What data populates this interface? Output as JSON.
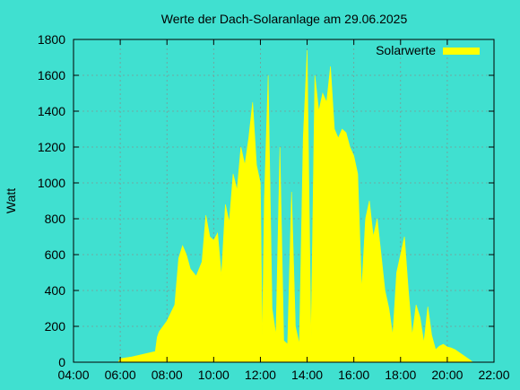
{
  "chart_data": {
    "type": "area",
    "title": "Werte der Dach-Solaranlage am 29.06.2025",
    "xlabel": "",
    "ylabel": "Watt",
    "x_ticks": [
      "04:00",
      "06:00",
      "08:00",
      "10:00",
      "12:00",
      "14:00",
      "16:00",
      "18:00",
      "20:00",
      "22:00"
    ],
    "y_ticks": [
      "0",
      "200",
      "400",
      "600",
      "800",
      "1000",
      "1200",
      "1400",
      "1600",
      "1800"
    ],
    "xlim": [
      "04:00",
      "22:00"
    ],
    "ylim": [
      0,
      1800
    ],
    "grid": true,
    "legend_position": "top-right",
    "colors": {
      "background": "#40E0D0",
      "series": "#FFFF00"
    },
    "series": [
      {
        "name": "Solarwerte",
        "x": [
          "05:55",
          "06:00",
          "06:30",
          "07:00",
          "07:30",
          "07:35",
          "07:40",
          "08:00",
          "08:20",
          "08:30",
          "08:40",
          "08:50",
          "09:00",
          "09:15",
          "09:30",
          "09:40",
          "09:50",
          "10:00",
          "10:10",
          "10:20",
          "10:30",
          "10:40",
          "10:50",
          "11:00",
          "11:10",
          "11:20",
          "11:30",
          "11:40",
          "11:50",
          "12:00",
          "12:05",
          "12:10",
          "12:20",
          "12:30",
          "12:40",
          "12:50",
          "13:00",
          "13:10",
          "13:20",
          "13:30",
          "13:40",
          "13:50",
          "14:00",
          "14:10",
          "14:20",
          "14:30",
          "14:40",
          "14:50",
          "15:00",
          "15:10",
          "15:20",
          "15:30",
          "15:40",
          "15:50",
          "16:00",
          "16:10",
          "16:20",
          "16:30",
          "16:40",
          "16:50",
          "17:00",
          "17:10",
          "17:20",
          "17:30",
          "17:40",
          "17:50",
          "18:00",
          "18:10",
          "18:20",
          "18:30",
          "18:40",
          "18:50",
          "19:00",
          "19:10",
          "19:20",
          "19:30",
          "19:40",
          "19:50",
          "20:00",
          "20:10",
          "20:20",
          "20:30",
          "20:40",
          "20:50",
          "21:00",
          "21:05"
        ],
        "values": [
          0,
          20,
          30,
          45,
          60,
          140,
          170,
          230,
          320,
          580,
          650,
          600,
          520,
          480,
          560,
          820,
          700,
          680,
          720,
          480,
          880,
          780,
          1050,
          960,
          1200,
          1100,
          1250,
          1450,
          1100,
          1000,
          100,
          900,
          1600,
          300,
          150,
          1200,
          120,
          100,
          950,
          200,
          100,
          1250,
          1740,
          100,
          1600,
          1400,
          1500,
          1450,
          1650,
          1300,
          1250,
          1300,
          1280,
          1200,
          1150,
          1050,
          400,
          800,
          900,
          700,
          800,
          600,
          400,
          300,
          150,
          500,
          600,
          700,
          400,
          150,
          320,
          250,
          110,
          310,
          150,
          70,
          90,
          100,
          85,
          80,
          70,
          55,
          40,
          25,
          10,
          0
        ]
      }
    ]
  }
}
